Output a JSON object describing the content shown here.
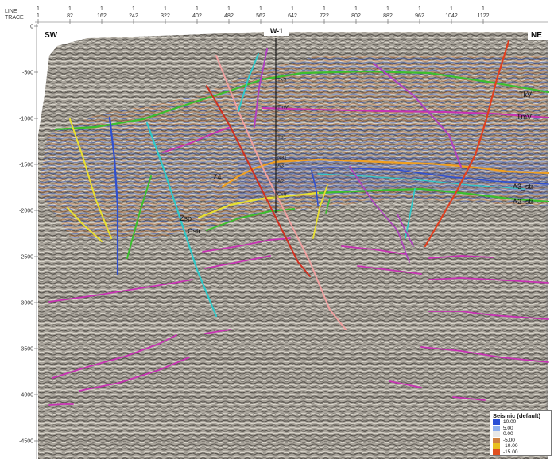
{
  "header": {
    "line_label": "LINE",
    "trace_label": "TRACE",
    "columns": [
      {
        "line": "1",
        "trace": "1"
      },
      {
        "line": "1",
        "trace": "82"
      },
      {
        "line": "1",
        "trace": "162"
      },
      {
        "line": "1",
        "trace": "242"
      },
      {
        "line": "1",
        "trace": "322"
      },
      {
        "line": "1",
        "trace": "402"
      },
      {
        "line": "1",
        "trace": "482"
      },
      {
        "line": "1",
        "trace": "562"
      },
      {
        "line": "1",
        "trace": "642"
      },
      {
        "line": "1",
        "trace": "722"
      },
      {
        "line": "1",
        "trace": "802"
      },
      {
        "line": "1",
        "trace": "882"
      },
      {
        "line": "1",
        "trace": "962"
      },
      {
        "line": "1",
        "trace": "1042"
      },
      {
        "line": "1",
        "trace": "1122"
      }
    ]
  },
  "time_axis": {
    "ticks": [
      "0",
      "-500",
      "-1000",
      "-1500",
      "-2000",
      "-2500",
      "-3000",
      "-3500",
      "-4000",
      "-4500"
    ]
  },
  "section": {
    "left_corner": "SW",
    "right_corner": "NE",
    "well_name": "W-1",
    "well_tops": [
      "TkS",
      "TmV",
      "Tp1",
      "N31",
      "A3",
      "A2",
      "Cstr"
    ]
  },
  "horizon_labels": {
    "tkv": "TkV",
    "tmv": "TmV",
    "a3_str": "A3_str",
    "a2_str": "A2_str",
    "z4": "Z4",
    "zsp": "Zsp",
    "cstr": "Cstr"
  },
  "legend": {
    "title": "Seismic (default)",
    "entries": [
      {
        "value": "10.00",
        "color": "#2a4fd6"
      },
      {
        "value": "5.00",
        "color": "#8fb0f0"
      },
      {
        "value": "0.00",
        "color": "#e8e8e8"
      },
      {
        "value": "-5.00",
        "color": "#d08040"
      },
      {
        "value": "-10.00",
        "color": "#e8c020"
      },
      {
        "value": "-15.00",
        "color": "#e05020"
      }
    ]
  },
  "colors": {
    "horizon_green": "#3bbf2e",
    "horizon_magenta": "#c832b4",
    "horizon_orange": "#f0a020",
    "horizon_yellow": "#e8e030",
    "fault_red": "#d03020",
    "fault_cyan": "#30c8c8",
    "fault_blue": "#3050d0",
    "fault_pink": "#f0a0a0",
    "fault_purple": "#b040c0"
  }
}
